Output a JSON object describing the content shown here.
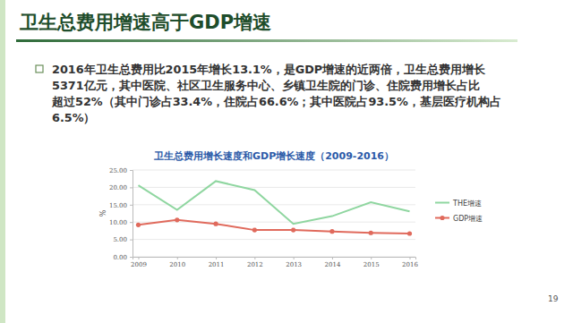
{
  "slide": {
    "title": "卫生总费用增速高于GDP增速",
    "bullet": [
      "2016年卫生总费用比2015年增长13.1%，是GDP增速的近两倍，卫生总费用增长",
      "5371亿元，其中医院、社区卫生服务中心、乡镇卫生院的门诊、住院费用增长占比",
      "超过52%（其中门诊占33.4%，住院占66.6%；其中医院占93.5%，基层医疗机构占",
      "6.5%）"
    ],
    "page": "19"
  },
  "chart_data": {
    "type": "line",
    "title": "卫生总费用增长速度和GDP增长速度（2009-2016）",
    "y_label": "%",
    "categories": [
      "2009",
      "2010",
      "2011",
      "2012",
      "2013",
      "2014",
      "2015",
      "2016"
    ],
    "series": [
      {
        "name": "THE增速",
        "color": "#8fd6a0",
        "marker": "none",
        "values": [
          20.6,
          13.5,
          21.8,
          19.2,
          9.5,
          11.7,
          15.7,
          13.1
        ]
      },
      {
        "name": "GDP增速",
        "color": "#e06a5c",
        "marker": "circle",
        "values": [
          9.2,
          10.6,
          9.5,
          7.7,
          7.7,
          7.3,
          6.9,
          6.7
        ]
      }
    ],
    "ylim": [
      0,
      25
    ],
    "yticks": [
      {
        "value": 0,
        "label": "0.00"
      },
      {
        "value": 5,
        "label": "5.00"
      },
      {
        "value": 10,
        "label": "10.00"
      },
      {
        "value": 15,
        "label": "15.00"
      },
      {
        "value": 20,
        "label": "20.00"
      },
      {
        "value": 25,
        "label": "25.00"
      }
    ],
    "grid": true,
    "legend": "right"
  }
}
